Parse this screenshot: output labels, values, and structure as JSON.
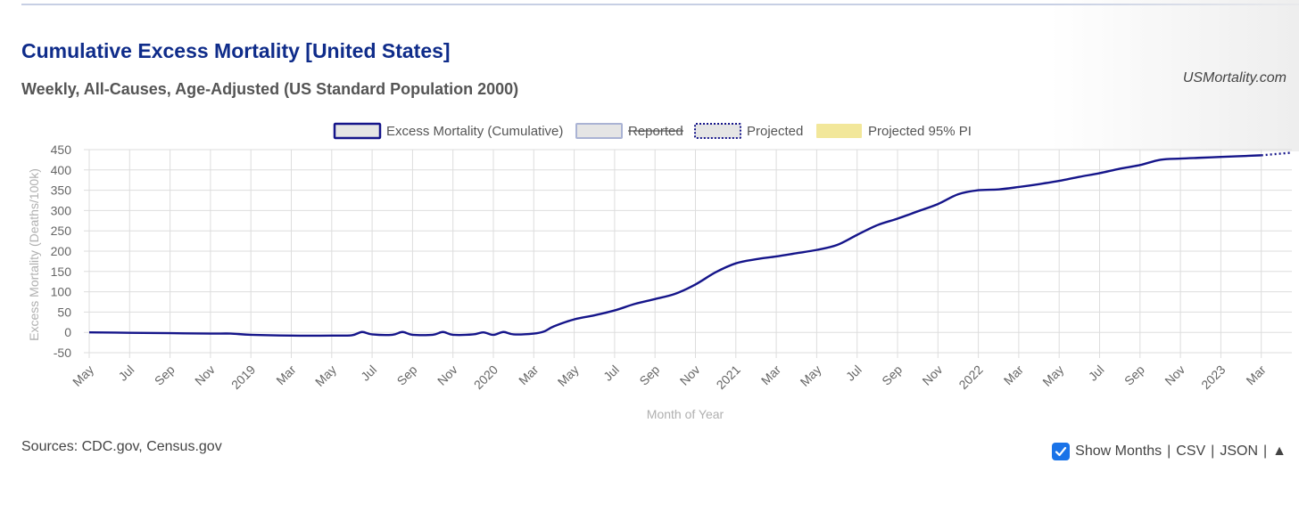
{
  "title": "Cumulative Excess Mortality [United States]",
  "subtitle": "Weekly, All-Causes, Age-Adjusted (US Standard Population 2000)",
  "brand": "USMortality.com",
  "sources": "Sources: CDC.gov, Census.gov",
  "controls": {
    "show_months": "Show Months",
    "sep1": "|",
    "csv": "CSV",
    "sep2": "|",
    "json": "JSON",
    "sep3": "|",
    "up": "▲",
    "checked": true
  },
  "colors": {
    "series": "#15158a",
    "reported_border": "#aab3d4",
    "box_fill": "#e5e5e5",
    "pi_fill": "#f2e79a",
    "grid": "#dddddd"
  },
  "chart_data": {
    "type": "line",
    "title": "Cumulative Excess Mortality [United States]",
    "subtitle": "Weekly, All-Causes, Age-Adjusted (US Standard Population 2000)",
    "xlabel": "Month of Year",
    "ylabel": "Excess Mortality (Deaths/100k)",
    "ylim": [
      -50,
      450
    ],
    "yticks": [
      450,
      400,
      350,
      300,
      250,
      200,
      150,
      100,
      50,
      0,
      -50
    ],
    "x_start": "2018-05",
    "x_end": "2023-04",
    "xtick_labels": [
      "May",
      "Jul",
      "Sep",
      "Nov",
      "2019",
      "Mar",
      "May",
      "Jul",
      "Sep",
      "Nov",
      "2020",
      "Mar",
      "May",
      "Jul",
      "Sep",
      "Nov",
      "2021",
      "Mar",
      "May",
      "Jul",
      "Sep",
      "Nov",
      "2022",
      "Mar",
      "May",
      "Jul",
      "Sep",
      "Nov",
      "2023",
      "Mar"
    ],
    "grid": true,
    "legend_position": "top-center",
    "legend": [
      {
        "label": "Excess Mortality (Cumulative)",
        "style": "solid"
      },
      {
        "label": "Reported",
        "style": "struck"
      },
      {
        "label": "Projected",
        "style": "dotted"
      },
      {
        "label": "Projected 95% PI",
        "style": "fill"
      }
    ],
    "series": [
      {
        "name": "Excess Mortality (Cumulative)",
        "x": [
          "2018-05",
          "2018-07",
          "2018-09",
          "2018-11",
          "2018-12",
          "2019-01",
          "2019-03",
          "2019-05",
          "2019-06",
          "2019-06.5",
          "2019-07",
          "2019-08",
          "2019-08.5",
          "2019-09",
          "2019-10",
          "2019-10.5",
          "2019-11",
          "2019-12",
          "2019-12.5",
          "2020-01",
          "2020-01.5",
          "2020-02",
          "2020-03",
          "2020-03.5",
          "2020-04",
          "2020-05",
          "2020-06",
          "2020-07",
          "2020-08",
          "2020-09",
          "2020-10",
          "2020-11",
          "2020-12",
          "2021-01",
          "2021-02",
          "2021-03",
          "2021-04",
          "2021-05",
          "2021-06",
          "2021-07",
          "2021-08",
          "2021-09",
          "2021-10",
          "2021-11",
          "2021-12",
          "2022-01",
          "2022-02",
          "2022-03",
          "2022-04",
          "2022-05",
          "2022-06",
          "2022-07",
          "2022-08",
          "2022-09",
          "2022-10",
          "2022-11",
          "2022-12",
          "2023-01",
          "2023-02",
          "2023-03"
        ],
        "y": [
          0,
          -1,
          -2,
          -3,
          -3,
          -6,
          -8,
          -8,
          -7,
          1,
          -5,
          -6,
          1,
          -6,
          -6,
          1,
          -6,
          -5,
          0,
          -6,
          1,
          -5,
          -3,
          2,
          15,
          32,
          42,
          54,
          70,
          82,
          95,
          118,
          148,
          170,
          180,
          187,
          195,
          203,
          215,
          240,
          264,
          280,
          298,
          316,
          340,
          350,
          352,
          358,
          365,
          373,
          383,
          392,
          403,
          412,
          425,
          428,
          430,
          432,
          434,
          436
        ]
      }
    ],
    "projected_from": "2023-03"
  }
}
